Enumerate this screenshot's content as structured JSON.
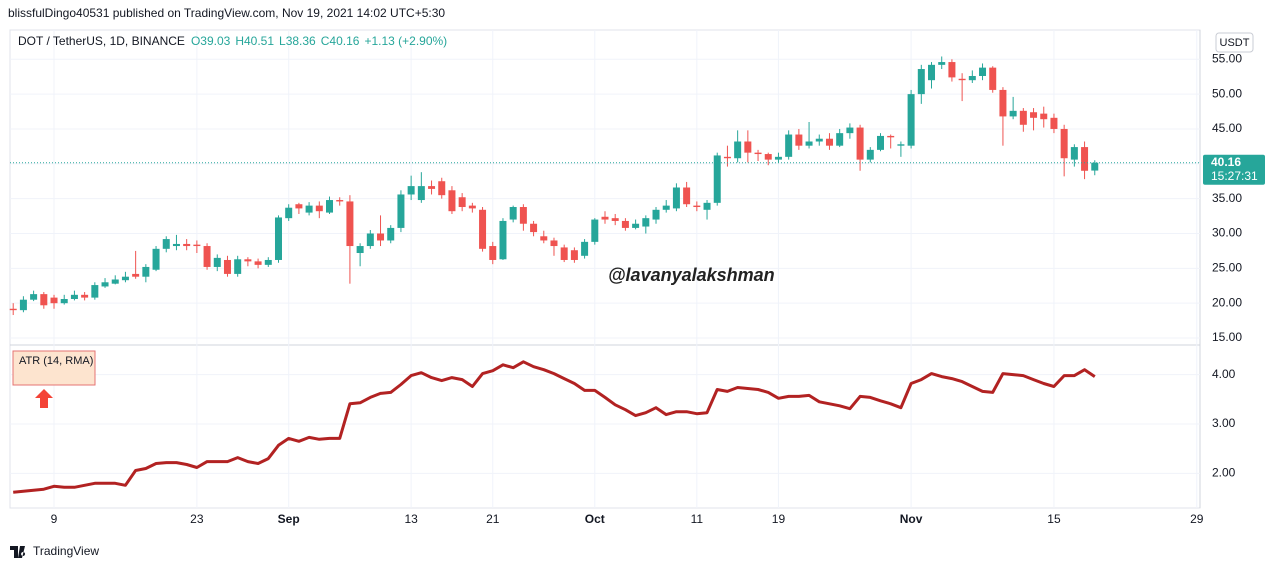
{
  "header": "blissfulDingo40531 published on TradingView.com, Nov 19, 2021 14:02 UTC+5:30",
  "footer": "TradingView",
  "chart_data": {
    "type": "candlestick",
    "symbol": "DOT / TetherUS, 1D, BINANCE",
    "ohlc_labels": [
      "O39.03",
      "H40.51",
      "L38.36",
      "C40.16",
      "+1.13 (+2.90%)"
    ],
    "currency": "USDT",
    "watermark": "@lavanyalakshman",
    "last_price": 40.16,
    "countdown": "15:27:31",
    "up_color": "#26a69a",
    "down_color": "#ef5350",
    "grid": true,
    "x": [
      "2021-08-05",
      "2021-08-06",
      "2021-08-07",
      "2021-08-08",
      "2021-08-09",
      "2021-08-10",
      "2021-08-11",
      "2021-08-12",
      "2021-08-13",
      "2021-08-14",
      "2021-08-15",
      "2021-08-16",
      "2021-08-17",
      "2021-08-18",
      "2021-08-19",
      "2021-08-20",
      "2021-08-21",
      "2021-08-22",
      "2021-08-23",
      "2021-08-24",
      "2021-08-25",
      "2021-08-26",
      "2021-08-27",
      "2021-08-28",
      "2021-08-29",
      "2021-08-30",
      "2021-08-31",
      "2021-09-01",
      "2021-09-02",
      "2021-09-03",
      "2021-09-04",
      "2021-09-05",
      "2021-09-06",
      "2021-09-07",
      "2021-09-08",
      "2021-09-09",
      "2021-09-10",
      "2021-09-11",
      "2021-09-12",
      "2021-09-13",
      "2021-09-14",
      "2021-09-15",
      "2021-09-16",
      "2021-09-17",
      "2021-09-18",
      "2021-09-19",
      "2021-09-20",
      "2021-09-21",
      "2021-09-22",
      "2021-09-23",
      "2021-09-24",
      "2021-09-25",
      "2021-09-26",
      "2021-09-27",
      "2021-09-28",
      "2021-09-29",
      "2021-09-30",
      "2021-10-01",
      "2021-10-02",
      "2021-10-03",
      "2021-10-04",
      "2021-10-05",
      "2021-10-06",
      "2021-10-07",
      "2021-10-08",
      "2021-10-09",
      "2021-10-10",
      "2021-10-11",
      "2021-10-12",
      "2021-10-13",
      "2021-10-14",
      "2021-10-15",
      "2021-10-16",
      "2021-10-17",
      "2021-10-18",
      "2021-10-19",
      "2021-10-20",
      "2021-10-21",
      "2021-10-22",
      "2021-10-23",
      "2021-10-24",
      "2021-10-25",
      "2021-10-26",
      "2021-10-27",
      "2021-10-28",
      "2021-10-29",
      "2021-10-30",
      "2021-10-31",
      "2021-11-01",
      "2021-11-02",
      "2021-11-03",
      "2021-11-04",
      "2021-11-05",
      "2021-11-06",
      "2021-11-07",
      "2021-11-08",
      "2021-11-09",
      "2021-11-10",
      "2021-11-11",
      "2021-11-12",
      "2021-11-13",
      "2021-11-14",
      "2021-11-15",
      "2021-11-16",
      "2021-11-17",
      "2021-11-18",
      "2021-11-19"
    ],
    "open": [
      19.2,
      19.0,
      20.5,
      21.3,
      20.8,
      20.0,
      20.6,
      21.2,
      20.8,
      22.4,
      22.8,
      23.3,
      24.2,
      23.8,
      24.8,
      27.8,
      28.2,
      28.5,
      28.4,
      28.2,
      25.2,
      26.2,
      24.2,
      26.3,
      26.0,
      25.5,
      26.2,
      32.2,
      34.2,
      33.0,
      34.0,
      33.0,
      34.8,
      34.6,
      27.2,
      28.2,
      30.0,
      29.0,
      30.8,
      35.6,
      34.8,
      36.8,
      37.5,
      36.2,
      35.2,
      34.0,
      33.4,
      28.2,
      26.3,
      32.0,
      33.8,
      31.4,
      29.6,
      29.0,
      28.0,
      27.6,
      26.8,
      28.8,
      32.4,
      32.2,
      31.8,
      30.8,
      31.0,
      32.0,
      33.4,
      33.6,
      36.6,
      34.0,
      33.4,
      34.4,
      41.0,
      40.8,
      43.2,
      41.6,
      41.4,
      40.6,
      41.0,
      44.2,
      42.6,
      43.2,
      43.6,
      42.6,
      44.4,
      45.2,
      40.6,
      42.0,
      44.0,
      42.6,
      42.6,
      50.0,
      52.0,
      54.2,
      54.6,
      52.2,
      52.0,
      52.6,
      53.8,
      50.6,
      46.8,
      47.6,
      47.4,
      47.2,
      46.6,
      45.0,
      40.6,
      42.4,
      39.03
    ],
    "high": [
      20.0,
      21.0,
      21.8,
      21.6,
      21.2,
      21.2,
      21.8,
      21.6,
      23.0,
      23.6,
      24.0,
      24.5,
      27.5,
      25.6,
      28.2,
      29.6,
      29.8,
      29.2,
      29.0,
      28.6,
      27.0,
      26.8,
      26.8,
      26.6,
      26.4,
      26.6,
      32.6,
      34.2,
      34.4,
      34.5,
      34.6,
      35.3,
      35.2,
      35.5,
      28.6,
      30.5,
      32.6,
      31.2,
      36.2,
      38.3,
      38.8,
      37.6,
      38.0,
      36.8,
      35.8,
      34.4,
      33.8,
      28.8,
      32.2,
      34.0,
      34.2,
      31.8,
      30.4,
      29.4,
      28.4,
      28.0,
      29.2,
      32.2,
      33.2,
      32.8,
      32.2,
      32.0,
      32.6,
      33.8,
      34.8,
      37.2,
      37.4,
      34.6,
      34.8,
      41.6,
      42.6,
      44.8,
      44.8,
      42.0,
      41.6,
      41.6,
      44.8,
      45.0,
      46.0,
      44.2,
      44.4,
      45.0,
      45.8,
      45.6,
      42.4,
      44.4,
      44.2,
      43.2,
      50.6,
      54.2,
      54.6,
      55.4,
      55.0,
      53.0,
      53.4,
      54.4,
      54.0,
      51.0,
      49.6,
      48.0,
      48.0,
      48.2,
      47.2,
      45.6,
      42.8,
      43.2,
      40.51
    ],
    "low": [
      18.3,
      18.7,
      20.3,
      19.2,
      19.2,
      19.8,
      20.4,
      20.4,
      20.5,
      22.2,
      22.7,
      23.0,
      23.5,
      23.0,
      24.6,
      27.3,
      27.6,
      27.6,
      27.2,
      24.8,
      24.6,
      23.8,
      23.8,
      25.3,
      25.0,
      25.2,
      25.8,
      31.8,
      32.8,
      32.6,
      32.2,
      32.8,
      34.0,
      22.8,
      25.3,
      27.8,
      28.2,
      28.6,
      30.2,
      34.8,
      34.4,
      35.6,
      35.0,
      32.8,
      33.2,
      33.0,
      27.4,
      25.6,
      26.2,
      31.6,
      30.4,
      29.6,
      28.6,
      26.8,
      25.9,
      25.8,
      26.4,
      28.4,
      31.4,
      31.2,
      30.4,
      30.6,
      30.0,
      31.4,
      33.0,
      33.2,
      33.8,
      33.2,
      32.0,
      34.0,
      39.6,
      40.2,
      40.2,
      40.4,
      39.8,
      40.2,
      40.6,
      42.0,
      42.2,
      42.6,
      42.0,
      42.4,
      43.6,
      39.0,
      40.2,
      41.8,
      42.2,
      41.0,
      42.2,
      48.6,
      50.8,
      53.6,
      51.8,
      49.0,
      51.6,
      52.0,
      50.2,
      42.6,
      46.4,
      44.6,
      44.8,
      45.2,
      44.4,
      38.2,
      39.6,
      37.8,
      38.36
    ],
    "close": [
      19.0,
      20.5,
      21.3,
      19.7,
      20.0,
      20.6,
      21.2,
      20.8,
      22.6,
      23.0,
      23.4,
      23.8,
      23.8,
      25.2,
      27.8,
      29.2,
      28.5,
      28.2,
      28.2,
      25.2,
      26.5,
      24.2,
      26.3,
      26.0,
      25.5,
      26.2,
      32.3,
      33.7,
      33.6,
      34.0,
      33.2,
      34.8,
      34.6,
      28.2,
      28.2,
      30.0,
      29.0,
      30.8,
      35.6,
      36.8,
      36.8,
      36.4,
      35.5,
      33.2,
      33.8,
      33.6,
      27.8,
      26.2,
      31.8,
      33.8,
      31.4,
      30.2,
      29.0,
      28.2,
      26.2,
      26.2,
      28.8,
      32.0,
      32.0,
      31.8,
      30.8,
      31.4,
      32.2,
      33.4,
      34.0,
      36.6,
      34.2,
      33.8,
      34.4,
      41.2,
      40.8,
      43.2,
      41.6,
      41.4,
      40.6,
      41.0,
      44.2,
      42.6,
      43.2,
      43.6,
      42.6,
      44.4,
      45.2,
      40.6,
      42.0,
      44.0,
      43.8,
      42.8,
      50.0,
      53.6,
      54.2,
      54.6,
      52.4,
      52.0,
      52.6,
      53.8,
      50.6,
      46.8,
      47.6,
      45.6,
      46.6,
      46.4,
      45.0,
      40.8,
      42.4,
      39.0,
      40.16
    ],
    "xlim": [
      "2021-08-04",
      "2021-11-30"
    ],
    "xticks": [
      {
        "value": "2021-08-09",
        "label": "9"
      },
      {
        "value": "2021-08-23",
        "label": "23"
      },
      {
        "value": "2021-09-01",
        "label": "Sep"
      },
      {
        "value": "2021-09-13",
        "label": "13"
      },
      {
        "value": "2021-09-21",
        "label": "21"
      },
      {
        "value": "2021-10-01",
        "label": "Oct"
      },
      {
        "value": "2021-10-11",
        "label": "11"
      },
      {
        "value": "2021-10-19",
        "label": "19"
      },
      {
        "value": "2021-11-01",
        "label": "Nov"
      },
      {
        "value": "2021-11-15",
        "label": "15"
      },
      {
        "value": "2021-11-29",
        "label": "29"
      }
    ],
    "ylim": [
      14,
      59.2
    ],
    "yticks": [
      {
        "value": 15,
        "label": "15.00"
      },
      {
        "value": 20,
        "label": "20.00"
      },
      {
        "value": 25,
        "label": "25.00"
      },
      {
        "value": 30,
        "label": "30.00"
      },
      {
        "value": 35,
        "label": "35.00"
      },
      {
        "value": 40,
        "label": "40.00"
      },
      {
        "value": 45,
        "label": "45.00"
      },
      {
        "value": 50,
        "label": "50.00"
      },
      {
        "value": 55,
        "label": "55.00"
      }
    ],
    "indicator": {
      "type": "line",
      "name": "ATR (14, RMA)",
      "color": "#b22222",
      "ylim": [
        1.3,
        4.6
      ],
      "yticks": [
        {
          "value": 2,
          "label": "2.00"
        },
        {
          "value": 3,
          "label": "3.00"
        },
        {
          "value": 4,
          "label": "4.00"
        }
      ],
      "values": [
        1.62,
        1.64,
        1.66,
        1.68,
        1.74,
        1.72,
        1.72,
        1.76,
        1.8,
        1.8,
        1.8,
        1.76,
        2.06,
        2.1,
        2.2,
        2.22,
        2.22,
        2.18,
        2.12,
        2.24,
        2.24,
        2.24,
        2.32,
        2.24,
        2.2,
        2.3,
        2.57,
        2.71,
        2.65,
        2.73,
        2.69,
        2.71,
        2.71,
        3.41,
        3.43,
        3.54,
        3.62,
        3.64,
        3.8,
        3.98,
        4.04,
        3.94,
        3.88,
        3.94,
        3.9,
        3.76,
        4.02,
        4.08,
        4.2,
        4.14,
        4.26,
        4.16,
        4.1,
        4.02,
        3.92,
        3.82,
        3.68,
        3.68,
        3.54,
        3.39,
        3.29,
        3.17,
        3.23,
        3.33,
        3.19,
        3.25,
        3.25,
        3.21,
        3.23,
        3.7,
        3.66,
        3.74,
        3.72,
        3.7,
        3.64,
        3.52,
        3.56,
        3.56,
        3.58,
        3.45,
        3.41,
        3.37,
        3.31,
        3.56,
        3.54,
        3.47,
        3.41,
        3.33,
        3.82,
        3.9,
        4.02,
        3.96,
        3.92,
        3.86,
        3.76,
        3.66,
        3.64,
        4.02,
        4.0,
        3.98,
        3.9,
        3.82,
        3.76,
        3.98,
        3.98,
        4.1,
        3.96
      ]
    }
  }
}
